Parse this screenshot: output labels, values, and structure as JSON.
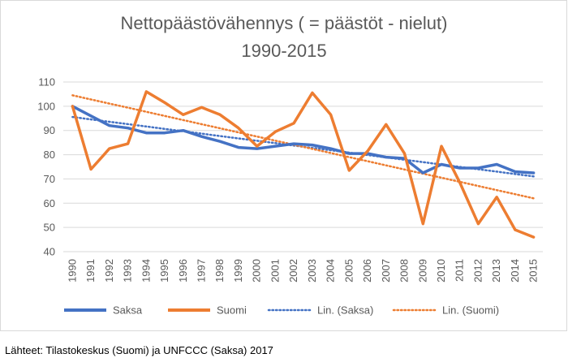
{
  "chart_data": {
    "type": "line",
    "title_lines": [
      "Nettopäästövähennys ( = päästöt - nielut)",
      "1990-2015"
    ],
    "categories": [
      "1990",
      "1991",
      "1992",
      "1993",
      "1994",
      "1995",
      "1996",
      "1997",
      "1998",
      "1999",
      "2000",
      "2001",
      "2002",
      "2003",
      "2004",
      "2005",
      "2006",
      "2007",
      "2008",
      "2009",
      "2010",
      "2011",
      "2012",
      "2013",
      "2014",
      "2015"
    ],
    "ylim": [
      40,
      110
    ],
    "yticks": [
      40,
      50,
      60,
      70,
      80,
      90,
      100,
      110
    ],
    "grid": true,
    "legend_position": "bottom",
    "series": [
      {
        "name": "Saksa",
        "color": "#4472c4",
        "style": "solid",
        "values": [
          100,
          96,
          92,
          91,
          89,
          89,
          90,
          87.5,
          85.5,
          83,
          82.5,
          83.5,
          84.5,
          84,
          82.5,
          80.5,
          80.5,
          79,
          78.5,
          72.5,
          76,
          74.5,
          74.5,
          76,
          73,
          72.5
        ]
      },
      {
        "name": "Suomi",
        "color": "#ed7d31",
        "style": "solid",
        "values": [
          100,
          74,
          82.5,
          84.5,
          106,
          101.5,
          96.5,
          99.5,
          96.5,
          91,
          83.5,
          89.5,
          93,
          105.5,
          96.5,
          73.5,
          81.5,
          92.5,
          80.5,
          51.5,
          83.5,
          68.5,
          51.5,
          62.5,
          49,
          46
        ]
      },
      {
        "name": "Lin. (Saksa)",
        "color": "#4472c4",
        "style": "dotted",
        "values": [
          95.55,
          94.57,
          93.59,
          92.61,
          91.63,
          90.65,
          89.67,
          88.69,
          87.71,
          86.73,
          85.75,
          84.77,
          83.79,
          82.81,
          81.83,
          80.85,
          79.87,
          78.89,
          77.91,
          76.93,
          75.95,
          74.97,
          73.99,
          73.01,
          72.03,
          71.05
        ]
      },
      {
        "name": "Lin. (Suomi)",
        "color": "#ed7d31",
        "style": "dotted",
        "values": [
          104.5,
          102.8,
          101.1,
          99.4,
          97.7,
          96.0,
          94.3,
          92.6,
          90.9,
          89.2,
          87.5,
          85.8,
          84.1,
          82.4,
          80.7,
          79.0,
          77.3,
          75.6,
          73.9,
          72.2,
          70.5,
          68.8,
          67.1,
          65.4,
          63.7,
          62.0
        ]
      }
    ]
  },
  "source_note": "Lähteet: Tilastokeskus (Suomi) ja UNFCCC (Saksa) 2017"
}
